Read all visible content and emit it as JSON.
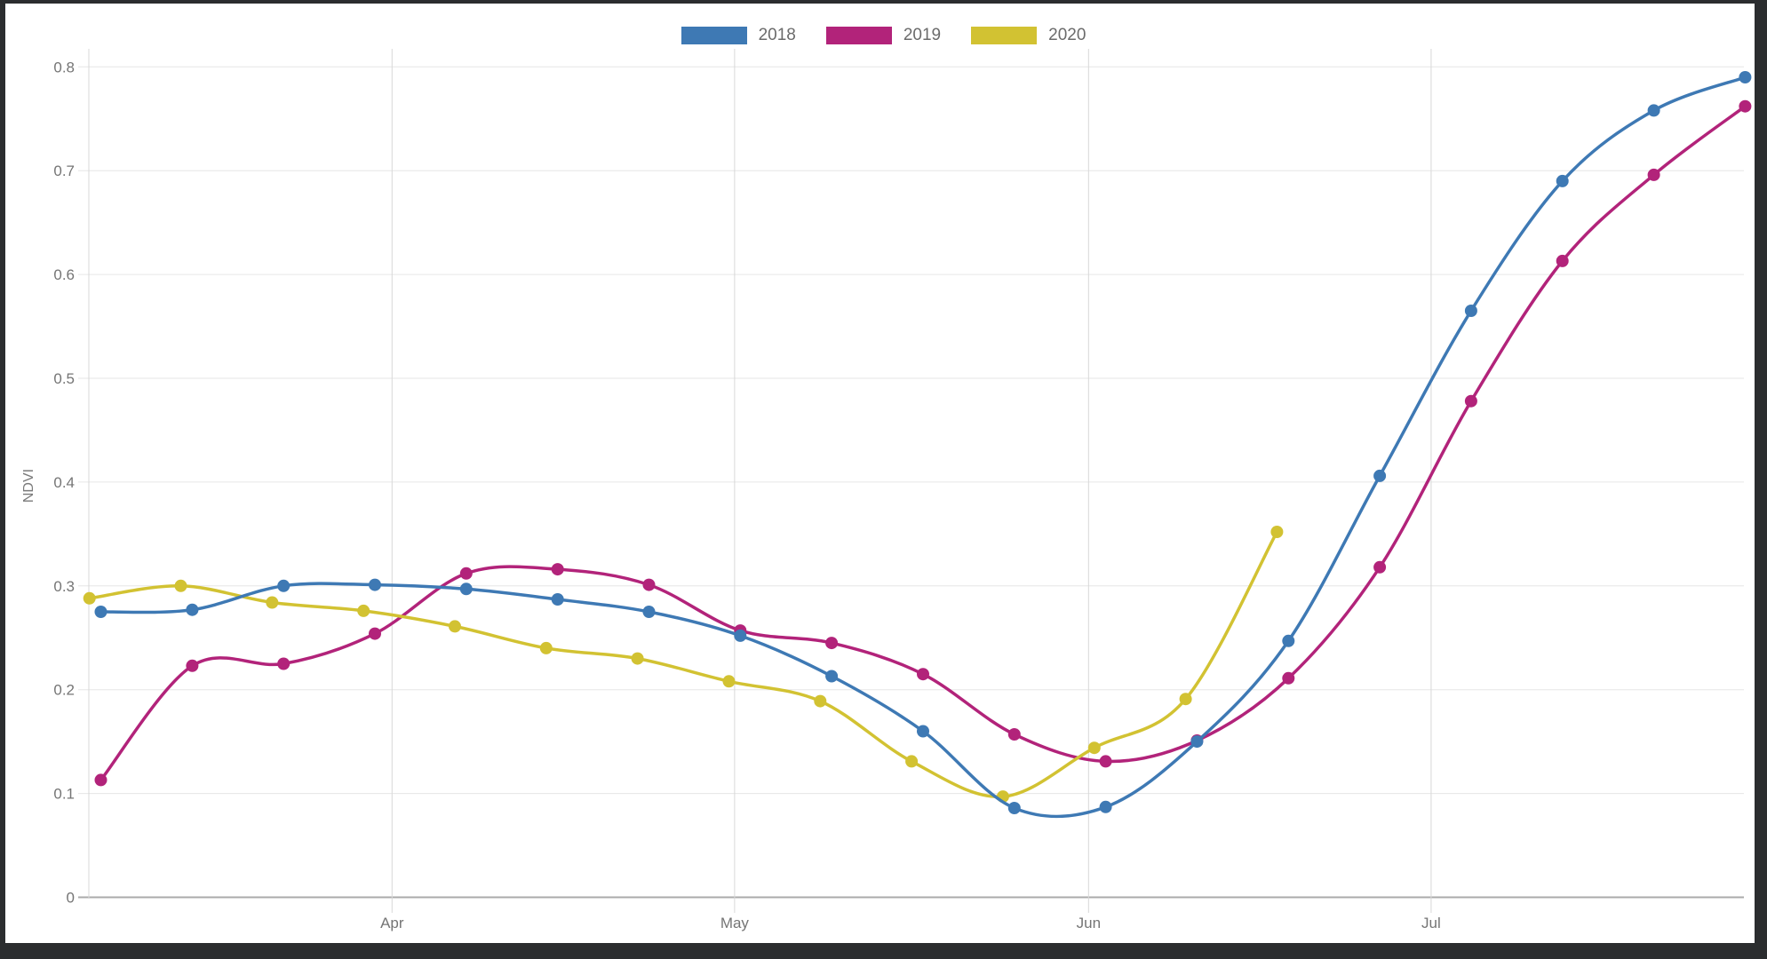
{
  "frame": {
    "color": "#2b2d2f",
    "background": "#ffffff"
  },
  "legend": {
    "items": [
      {
        "label": "2018",
        "color": "#3e79b4"
      },
      {
        "label": "2019",
        "color": "#b2237a"
      },
      {
        "label": "2020",
        "color": "#d2c232"
      }
    ]
  },
  "axes": {
    "y_label": "NDVI",
    "y_ticks": [
      "0",
      "0.1",
      "0.2",
      "0.3",
      "0.4",
      "0.5",
      "0.6",
      "0.7",
      "0.8"
    ],
    "x_ticks": [
      {
        "label": "Apr",
        "d": 31
      },
      {
        "label": "May",
        "d": 61
      },
      {
        "label": "Jun",
        "d": 92
      },
      {
        "label": "Jul",
        "d": 122
      }
    ],
    "tick_color": "#757575",
    "grid_color_horizontal": "#e6e6e6",
    "grid_color_vertical": "#d8d8d8",
    "axis_line_color": "#ababab"
  },
  "chart_data": {
    "type": "line",
    "title": "",
    "xlabel": "",
    "ylabel": "NDVI",
    "ylim": [
      0,
      0.8
    ],
    "grid": true,
    "legend_position": "top-center",
    "x_axis_month_labels": [
      "Apr",
      "May",
      "Jun",
      "Jul"
    ],
    "series": [
      {
        "name": "2018",
        "color": "#3e79b4",
        "points": [
          {
            "date": "Mar 6",
            "d": 5.5,
            "v": 0.275
          },
          {
            "date": "Mar 14",
            "d": 13.5,
            "v": 0.277
          },
          {
            "date": "Mar 22",
            "d": 21.5,
            "v": 0.3
          },
          {
            "date": "Mar 30",
            "d": 29.5,
            "v": 0.301
          },
          {
            "date": "Apr 7",
            "d": 37.5,
            "v": 0.297
          },
          {
            "date": "Apr 15",
            "d": 45.5,
            "v": 0.287
          },
          {
            "date": "Apr 23",
            "d": 53.5,
            "v": 0.275
          },
          {
            "date": "May 1",
            "d": 61.5,
            "v": 0.252
          },
          {
            "date": "May 9",
            "d": 69.5,
            "v": 0.213
          },
          {
            "date": "May 17",
            "d": 77.5,
            "v": 0.16
          },
          {
            "date": "May 25",
            "d": 85.5,
            "v": 0.086
          },
          {
            "date": "Jun 2",
            "d": 93.5,
            "v": 0.087
          },
          {
            "date": "Jun 10",
            "d": 101.5,
            "v": 0.15
          },
          {
            "date": "Jun 18",
            "d": 109.5,
            "v": 0.247
          },
          {
            "date": "Jun 26",
            "d": 117.5,
            "v": 0.406
          },
          {
            "date": "Jul 4",
            "d": 125.5,
            "v": 0.565
          },
          {
            "date": "Jul 12",
            "d": 133.5,
            "v": 0.69
          },
          {
            "date": "Jul 20",
            "d": 141.5,
            "v": 0.758
          },
          {
            "date": "Jul 28",
            "d": 149.5,
            "v": 0.79
          }
        ]
      },
      {
        "name": "2019",
        "color": "#b2237a",
        "points": [
          {
            "date": "Mar 6",
            "d": 5.5,
            "v": 0.113
          },
          {
            "date": "Mar 14",
            "d": 13.5,
            "v": 0.223
          },
          {
            "date": "Mar 22",
            "d": 21.5,
            "v": 0.225
          },
          {
            "date": "Mar 30",
            "d": 29.5,
            "v": 0.254
          },
          {
            "date": "Apr 7",
            "d": 37.5,
            "v": 0.312
          },
          {
            "date": "Apr 15",
            "d": 45.5,
            "v": 0.316
          },
          {
            "date": "Apr 23",
            "d": 53.5,
            "v": 0.301
          },
          {
            "date": "May 1",
            "d": 61.5,
            "v": 0.257
          },
          {
            "date": "May 9",
            "d": 69.5,
            "v": 0.245
          },
          {
            "date": "May 17",
            "d": 77.5,
            "v": 0.215
          },
          {
            "date": "May 25",
            "d": 85.5,
            "v": 0.157
          },
          {
            "date": "Jun 2",
            "d": 93.5,
            "v": 0.131
          },
          {
            "date": "Jun 10",
            "d": 101.5,
            "v": 0.151
          },
          {
            "date": "Jun 18",
            "d": 109.5,
            "v": 0.211
          },
          {
            "date": "Jun 26",
            "d": 117.5,
            "v": 0.318
          },
          {
            "date": "Jul 4",
            "d": 125.5,
            "v": 0.478
          },
          {
            "date": "Jul 12",
            "d": 133.5,
            "v": 0.613
          },
          {
            "date": "Jul 20",
            "d": 141.5,
            "v": 0.696
          },
          {
            "date": "Jul 28",
            "d": 149.5,
            "v": 0.762
          }
        ]
      },
      {
        "name": "2020",
        "color": "#d2c232",
        "points": [
          {
            "date": "Mar 5",
            "d": 4.5,
            "v": 0.288
          },
          {
            "date": "Mar 13",
            "d": 12.5,
            "v": 0.3
          },
          {
            "date": "Mar 21",
            "d": 20.5,
            "v": 0.284
          },
          {
            "date": "Mar 29",
            "d": 28.5,
            "v": 0.276
          },
          {
            "date": "Apr 6",
            "d": 36.5,
            "v": 0.261
          },
          {
            "date": "Apr 14",
            "d": 44.5,
            "v": 0.24
          },
          {
            "date": "Apr 22",
            "d": 52.5,
            "v": 0.23
          },
          {
            "date": "Apr 30",
            "d": 60.5,
            "v": 0.208
          },
          {
            "date": "May 8",
            "d": 68.5,
            "v": 0.189
          },
          {
            "date": "May 16",
            "d": 76.5,
            "v": 0.131
          },
          {
            "date": "May 24",
            "d": 84.5,
            "v": 0.097
          },
          {
            "date": "Jun 1",
            "d": 92.5,
            "v": 0.144
          },
          {
            "date": "Jun 9",
            "d": 100.5,
            "v": 0.191
          },
          {
            "date": "Jun 17",
            "d": 108.5,
            "v": 0.352
          }
        ]
      }
    ]
  }
}
